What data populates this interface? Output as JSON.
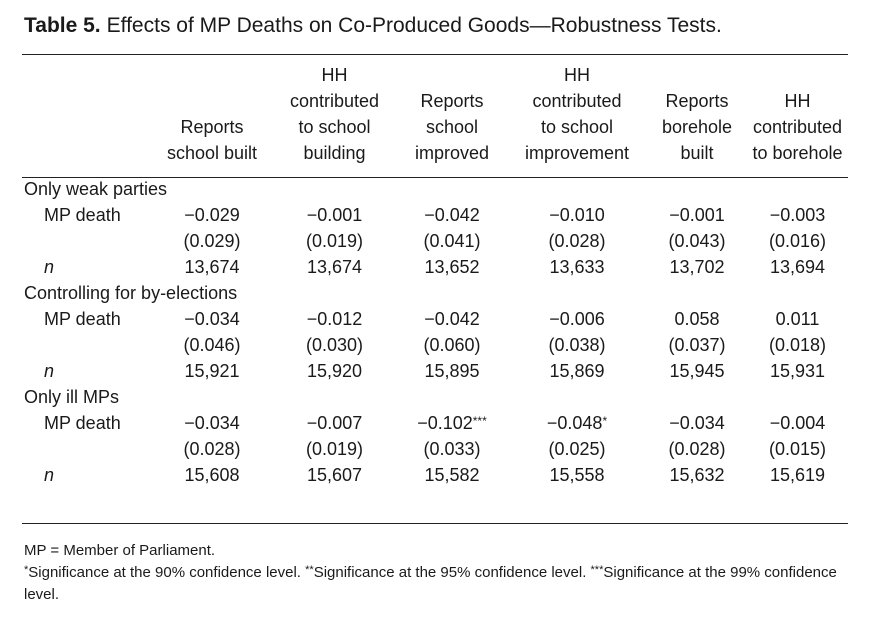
{
  "caption": {
    "label": "Table 5.",
    "title": "Effects of MP Deaths on Co-Produced Goods—Robustness Tests."
  },
  "columns": [
    "Reports\nschool built",
    "HH\ncontributed\nto school\nbuilding",
    "Reports\nschool\nimproved",
    "HH\ncontributed\nto school\nimprovement",
    "Reports\nborehole\nbuilt",
    "HH\ncontributed\nto borehole"
  ],
  "sections": [
    {
      "title": "Only weak parties",
      "row_label": "MP death",
      "n_label": "n",
      "coef": [
        {
          "v": "−0.029",
          "s": ""
        },
        {
          "v": "−0.001",
          "s": ""
        },
        {
          "v": "−0.042",
          "s": ""
        },
        {
          "v": "−0.010",
          "s": ""
        },
        {
          "v": "−0.001",
          "s": ""
        },
        {
          "v": "−0.003",
          "s": ""
        }
      ],
      "se": [
        "(0.029)",
        "(0.019)",
        "(0.041)",
        "(0.028)",
        "(0.043)",
        "(0.016)"
      ],
      "n": [
        "13,674",
        "13,674",
        "13,652",
        "13,633",
        "13,702",
        "13,694"
      ]
    },
    {
      "title": "Controlling for by-elections",
      "row_label": "MP death",
      "n_label": "n",
      "coef": [
        {
          "v": "−0.034",
          "s": ""
        },
        {
          "v": "−0.012",
          "s": ""
        },
        {
          "v": "−0.042",
          "s": ""
        },
        {
          "v": "−0.006",
          "s": ""
        },
        {
          "v": "0.058",
          "s": ""
        },
        {
          "v": "0.011",
          "s": ""
        }
      ],
      "se": [
        "(0.046)",
        "(0.030)",
        "(0.060)",
        "(0.038)",
        "(0.037)",
        "(0.018)"
      ],
      "n": [
        "15,921",
        "15,920",
        "15,895",
        "15,869",
        "15,945",
        "15,931"
      ]
    },
    {
      "title": "Only ill MPs",
      "row_label": "MP death",
      "n_label": "n",
      "coef": [
        {
          "v": "−0.034",
          "s": ""
        },
        {
          "v": "−0.007",
          "s": ""
        },
        {
          "v": "−0.102",
          "s": "***"
        },
        {
          "v": "−0.048",
          "s": "*"
        },
        {
          "v": "−0.034",
          "s": ""
        },
        {
          "v": "−0.004",
          "s": ""
        }
      ],
      "se": [
        "(0.028)",
        "(0.019)",
        "(0.033)",
        "(0.025)",
        "(0.028)",
        "(0.015)"
      ],
      "n": [
        "15,608",
        "15,607",
        "15,582",
        "15,558",
        "15,632",
        "15,619"
      ]
    }
  ],
  "notes": {
    "abbrev": "MP = Member of Parliament.",
    "sig": [
      {
        "mark": "*",
        "text": "Significance at the 90% confidence level. "
      },
      {
        "mark": "**",
        "text": "Significance at the 95% confidence level. "
      },
      {
        "mark": "***",
        "text": "Significance at the 99% confidence level."
      }
    ]
  }
}
